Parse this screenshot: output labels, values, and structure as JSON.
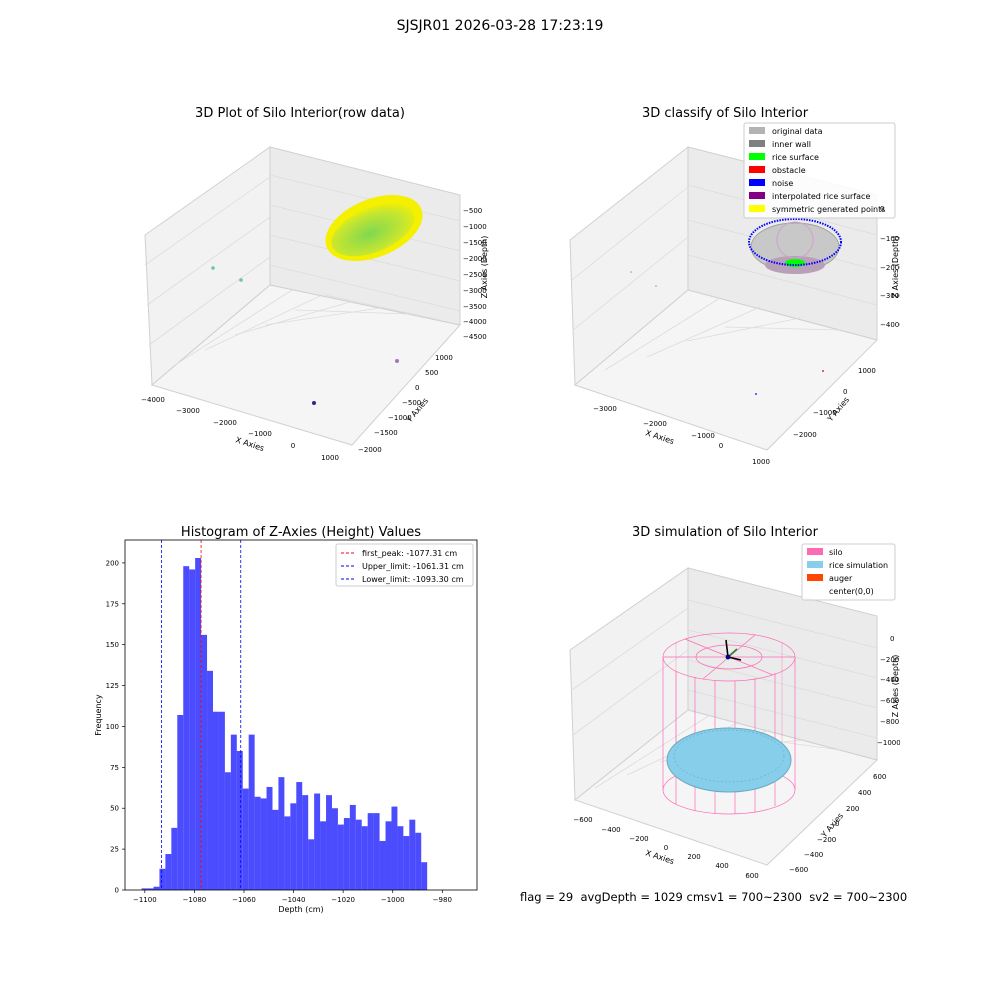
{
  "figure": {
    "suptitle": "SJSJR01 2026-03-28 17:23:19",
    "status_line": "flag = 29  avgDepth = 1029 cmsv1 = 700~2300  sv2 = 700~2300"
  },
  "panel_raw": {
    "title": "3D Plot of Silo Interior(row data)",
    "x_label": "X Axies",
    "y_label": "Y Axies",
    "z_label": "Z Axies (Depth)",
    "x_ticks": [
      "−4000",
      "−3000",
      "−2000",
      "−1000",
      "0",
      "1000"
    ],
    "y_ticks": [
      "1000",
      "500",
      "0",
      "−500",
      "−1000",
      "−1500",
      "−2000"
    ],
    "z_ticks": [
      "−500",
      "−1000",
      "−1500",
      "−2000",
      "−2500",
      "−3000",
      "−3500",
      "−4000",
      "−4500"
    ]
  },
  "panel_classify": {
    "title": "3D classify of Silo Interior",
    "x_label": "X Axies",
    "y_label": "Y Axies",
    "z_label": "Z Axies (Depth)",
    "x_ticks": [
      "−3000",
      "−2000",
      "−1000",
      "0",
      "1000"
    ],
    "y_ticks": [
      "1000",
      "0",
      "−1000",
      "−2000"
    ],
    "z_ticks": [
      "0",
      "−1000",
      "−2000",
      "−3000",
      "−4000"
    ],
    "legend": [
      {
        "label": "original data",
        "color": "#b3b3b3"
      },
      {
        "label": "inner wall",
        "color": "#808080"
      },
      {
        "label": "rice surface",
        "color": "#00ff00"
      },
      {
        "label": "obstacle",
        "color": "#ff0000"
      },
      {
        "label": "noise",
        "color": "#0000ff"
      },
      {
        "label": "interpolated rice surface",
        "color": "#800080"
      },
      {
        "label": "symmetric generated points",
        "color": "#ffff00"
      }
    ]
  },
  "panel_sim": {
    "title": "3D simulation of Silo Interior",
    "x_label": "X Axies",
    "y_label": "Y Axies",
    "z_label": "Z Axies (Depth)",
    "x_ticks": [
      "−600",
      "−400",
      "−200",
      "0",
      "200",
      "400",
      "600"
    ],
    "y_ticks": [
      "600",
      "400",
      "200",
      "0",
      "−200",
      "−400",
      "−600"
    ],
    "z_ticks": [
      "0",
      "−200",
      "−400",
      "−600",
      "−800",
      "−1000"
    ],
    "legend": [
      {
        "label": "silo",
        "color": "#ff69b4"
      },
      {
        "label": "rice simulation",
        "color": "#87ceeb"
      },
      {
        "label": "auger",
        "color": "#ff4500"
      },
      {
        "label": "center(0,0)",
        "color": ""
      }
    ]
  },
  "chart_data": {
    "type": "bar",
    "title": "Histogram of Z-Axies (Height) Values",
    "xlabel": "Depth (cm)",
    "ylabel": "Frequency",
    "bar_color": "#0000ff",
    "xlim": [
      -1108,
      -966
    ],
    "ylim": [
      0,
      214
    ],
    "x_ticks": [
      -1100,
      -1080,
      -1060,
      -1040,
      -1020,
      -1000,
      -980
    ],
    "y_ticks": [
      0,
      25,
      50,
      75,
      100,
      125,
      150,
      175,
      200
    ],
    "bin_start": -1101.3,
    "bin_width": 2.4,
    "values": [
      1,
      1,
      2,
      13,
      22,
      38,
      107,
      198,
      196,
      203,
      156,
      134,
      109,
      109,
      72,
      95,
      85,
      62,
      95,
      57,
      56,
      63,
      49,
      69,
      45,
      53,
      66,
      58,
      31,
      59,
      42,
      58,
      50,
      40,
      44,
      52,
      43,
      39,
      47,
      47,
      30,
      42,
      51,
      39,
      33,
      43,
      35,
      17
    ],
    "vlines": [
      {
        "label": "first_peak: -1077.31 cm",
        "x": -1077.31,
        "color": "#ff0000"
      },
      {
        "label": "Upper_limit: -1061.31 cm",
        "x": -1061.31,
        "color": "#0000ff"
      },
      {
        "label": "Lower_limit: -1093.30 cm",
        "x": -1093.3,
        "color": "#0000ff"
      }
    ]
  }
}
